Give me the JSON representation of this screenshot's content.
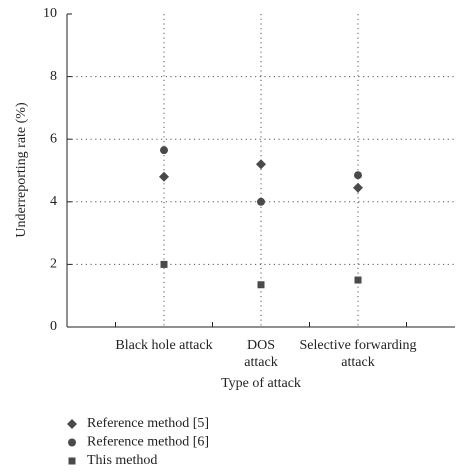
{
  "chart_data": {
    "type": "scatter",
    "x_label": "Type of attack",
    "y_label": "Underreporting rate (%)",
    "categories": [
      "Black hole attack",
      "DOS attack",
      "Selective forwarding attack"
    ],
    "series": [
      {
        "name": "Reference method [5]",
        "marker": "diamond",
        "color": "#4a4a4a",
        "values": [
          4.8,
          5.2,
          4.45
        ]
      },
      {
        "name": "Reference method [6]",
        "marker": "circle",
        "color": "#4a4a4a",
        "values": [
          5.65,
          4.0,
          4.85
        ]
      },
      {
        "name": "This method",
        "marker": "square",
        "color": "#4a4a4a",
        "values": [
          2.0,
          1.35,
          1.5
        ]
      }
    ],
    "ylim": [
      0,
      10
    ],
    "yticks": [
      0,
      2,
      4,
      6,
      8,
      10
    ],
    "grid": true
  }
}
